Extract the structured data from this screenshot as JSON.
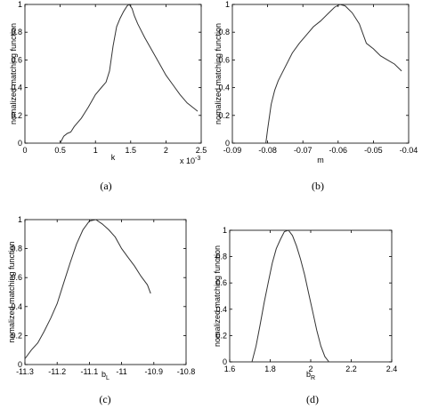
{
  "chart_data": [
    {
      "type": "line",
      "caption": "(a)",
      "xlabel": "k",
      "ylabel": "nomalized matching function",
      "x_multiplier_label": "x 10",
      "x_multiplier_exp": "-3",
      "xlim": [
        0,
        2.5
      ],
      "ylim": [
        0,
        1
      ],
      "xticks": [
        "0",
        "0.5",
        "1",
        "1.5",
        "2",
        "2.5"
      ],
      "xtick_values": [
        0,
        0.5,
        1,
        1.5,
        2,
        2.5
      ],
      "yticks": [
        "0",
        "0.2",
        "0.4",
        "0.6",
        "0.8",
        "1"
      ],
      "ytick_values": [
        0,
        0.2,
        0.4,
        0.6,
        0.8,
        1
      ],
      "series": [
        {
          "x": [
            0.5,
            0.55,
            0.6,
            0.65,
            0.7,
            0.8,
            0.9,
            1.0,
            1.1,
            1.15,
            1.2,
            1.25,
            1.3,
            1.35,
            1.4,
            1.45,
            1.48,
            1.52,
            1.55,
            1.6,
            1.7,
            1.8,
            1.9,
            2.0,
            2.1,
            2.2,
            2.3,
            2.4,
            2.45
          ],
          "y": [
            0.0,
            0.05,
            0.07,
            0.08,
            0.12,
            0.18,
            0.26,
            0.35,
            0.41,
            0.44,
            0.52,
            0.7,
            0.84,
            0.9,
            0.95,
            0.99,
            1.0,
            0.97,
            0.92,
            0.86,
            0.76,
            0.67,
            0.58,
            0.49,
            0.42,
            0.35,
            0.29,
            0.25,
            0.23
          ]
        }
      ]
    },
    {
      "type": "line",
      "caption": "(b)",
      "xlabel": "m",
      "ylabel": "nomalized matching function",
      "xlim": [
        -0.09,
        -0.04
      ],
      "ylim": [
        0,
        1
      ],
      "xticks": [
        "-0.09",
        "-0.08",
        "-0.07",
        "-0.06",
        "-0.05",
        "-0.04"
      ],
      "xtick_values": [
        -0.09,
        -0.08,
        -0.07,
        -0.06,
        -0.05,
        -0.04
      ],
      "yticks": [
        "0",
        "0.2",
        "0.4",
        "0.6",
        "0.8",
        "1"
      ],
      "ytick_values": [
        0,
        0.2,
        0.4,
        0.6,
        0.8,
        1
      ],
      "series": [
        {
          "x": [
            -0.0805,
            -0.08,
            -0.079,
            -0.078,
            -0.077,
            -0.075,
            -0.073,
            -0.071,
            -0.069,
            -0.067,
            -0.065,
            -0.063,
            -0.061,
            -0.0595,
            -0.058,
            -0.056,
            -0.054,
            -0.052,
            -0.05,
            -0.048,
            -0.046,
            -0.044,
            -0.042
          ],
          "y": [
            0.0,
            0.1,
            0.28,
            0.38,
            0.45,
            0.55,
            0.65,
            0.72,
            0.78,
            0.84,
            0.88,
            0.93,
            0.98,
            1.0,
            0.99,
            0.94,
            0.86,
            0.72,
            0.68,
            0.63,
            0.6,
            0.57,
            0.52
          ]
        }
      ]
    },
    {
      "type": "line",
      "caption": "(c)",
      "xlabel": "b",
      "xlabel_sub": "L",
      "ylabel": "nomalized matching function",
      "xlim": [
        -11.3,
        -10.8
      ],
      "ylim": [
        0,
        1
      ],
      "xticks": [
        "-11.3",
        "-11.2",
        "-11.1",
        "-11",
        "-10.9",
        "-10.8"
      ],
      "xtick_values": [
        -11.3,
        -11.2,
        -11.1,
        -11.0,
        -10.9,
        -10.8
      ],
      "yticks": [
        "0",
        "0.2",
        "0.4",
        "0.6",
        "0.8",
        "1"
      ],
      "ytick_values": [
        0,
        0.2,
        0.4,
        0.6,
        0.8,
        1
      ],
      "series": [
        {
          "x": [
            -11.3,
            -11.28,
            -11.26,
            -11.24,
            -11.22,
            -11.2,
            -11.18,
            -11.16,
            -11.14,
            -11.12,
            -11.1,
            -11.08,
            -11.06,
            -11.04,
            -11.02,
            -11.0,
            -10.98,
            -10.96,
            -10.94,
            -10.92,
            -10.91
          ],
          "y": [
            0.04,
            0.1,
            0.15,
            0.23,
            0.32,
            0.42,
            0.56,
            0.7,
            0.83,
            0.93,
            0.99,
            1.0,
            0.97,
            0.93,
            0.88,
            0.8,
            0.74,
            0.68,
            0.61,
            0.55,
            0.49
          ]
        }
      ]
    },
    {
      "type": "line",
      "caption": "(d)",
      "xlabel": "b",
      "xlabel_sub": "R",
      "ylabel": "nomalized matching function",
      "xlim": [
        1.6,
        2.4
      ],
      "ylim": [
        0,
        1
      ],
      "xticks": [
        "1.6",
        "1.8",
        "2",
        "2.2",
        "2.4"
      ],
      "xtick_values": [
        1.6,
        1.8,
        2.0,
        2.2,
        2.4
      ],
      "yticks": [
        "0",
        "0.2",
        "0.4",
        "0.6",
        "0.8",
        "1"
      ],
      "ytick_values": [
        0,
        0.2,
        0.4,
        0.6,
        0.8,
        1
      ],
      "series": [
        {
          "x": [
            1.71,
            1.73,
            1.75,
            1.77,
            1.79,
            1.81,
            1.83,
            1.85,
            1.87,
            1.89,
            1.91,
            1.93,
            1.95,
            1.97,
            1.99,
            2.01,
            2.03,
            2.05,
            2.07,
            2.09
          ],
          "y": [
            0.0,
            0.12,
            0.28,
            0.45,
            0.6,
            0.75,
            0.86,
            0.93,
            0.99,
            1.0,
            0.96,
            0.88,
            0.78,
            0.66,
            0.52,
            0.38,
            0.24,
            0.12,
            0.04,
            0.0
          ]
        }
      ]
    }
  ]
}
